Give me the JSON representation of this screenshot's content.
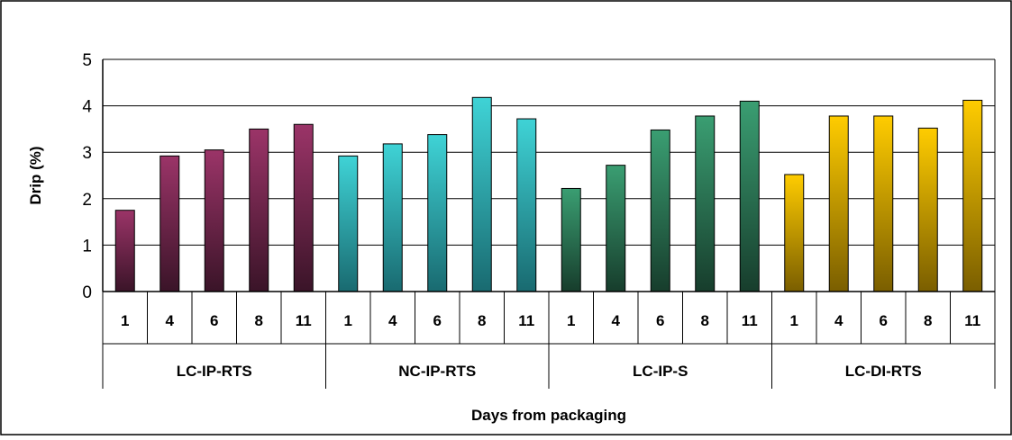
{
  "chart_data": {
    "type": "bar",
    "xlabel": "Days from packaging",
    "ylabel": "Drip (%)",
    "ylim": [
      0,
      5
    ],
    "yticks": [
      "0",
      "1",
      "2",
      "3",
      "4",
      "5"
    ],
    "grid": true,
    "legend": "none",
    "groups": [
      {
        "name": "LC-IP-RTS",
        "color_top": "#9b3468",
        "color_bottom": "#3a1428",
        "days": [
          "1",
          "4",
          "6",
          "8",
          "11"
        ],
        "values": [
          1.75,
          2.92,
          3.05,
          3.5,
          3.6
        ]
      },
      {
        "name": "NC-IP-RTS",
        "color_top": "#3fd3d6",
        "color_bottom": "#196a70",
        "days": [
          "1",
          "4",
          "6",
          "8",
          "11"
        ],
        "values": [
          2.92,
          3.18,
          3.38,
          4.18,
          3.72
        ]
      },
      {
        "name": "LC-IP-S",
        "color_top": "#3a9e72",
        "color_bottom": "#173d2c",
        "days": [
          "1",
          "4",
          "6",
          "8",
          "11"
        ],
        "values": [
          2.22,
          2.72,
          3.48,
          3.78,
          4.1
        ]
      },
      {
        "name": "LC-DI-RTS",
        "color_top": "#ffcc00",
        "color_bottom": "#7a5e00",
        "days": [
          "1",
          "4",
          "6",
          "8",
          "11"
        ],
        "values": [
          2.52,
          3.78,
          3.78,
          3.52,
          4.12
        ]
      }
    ]
  }
}
